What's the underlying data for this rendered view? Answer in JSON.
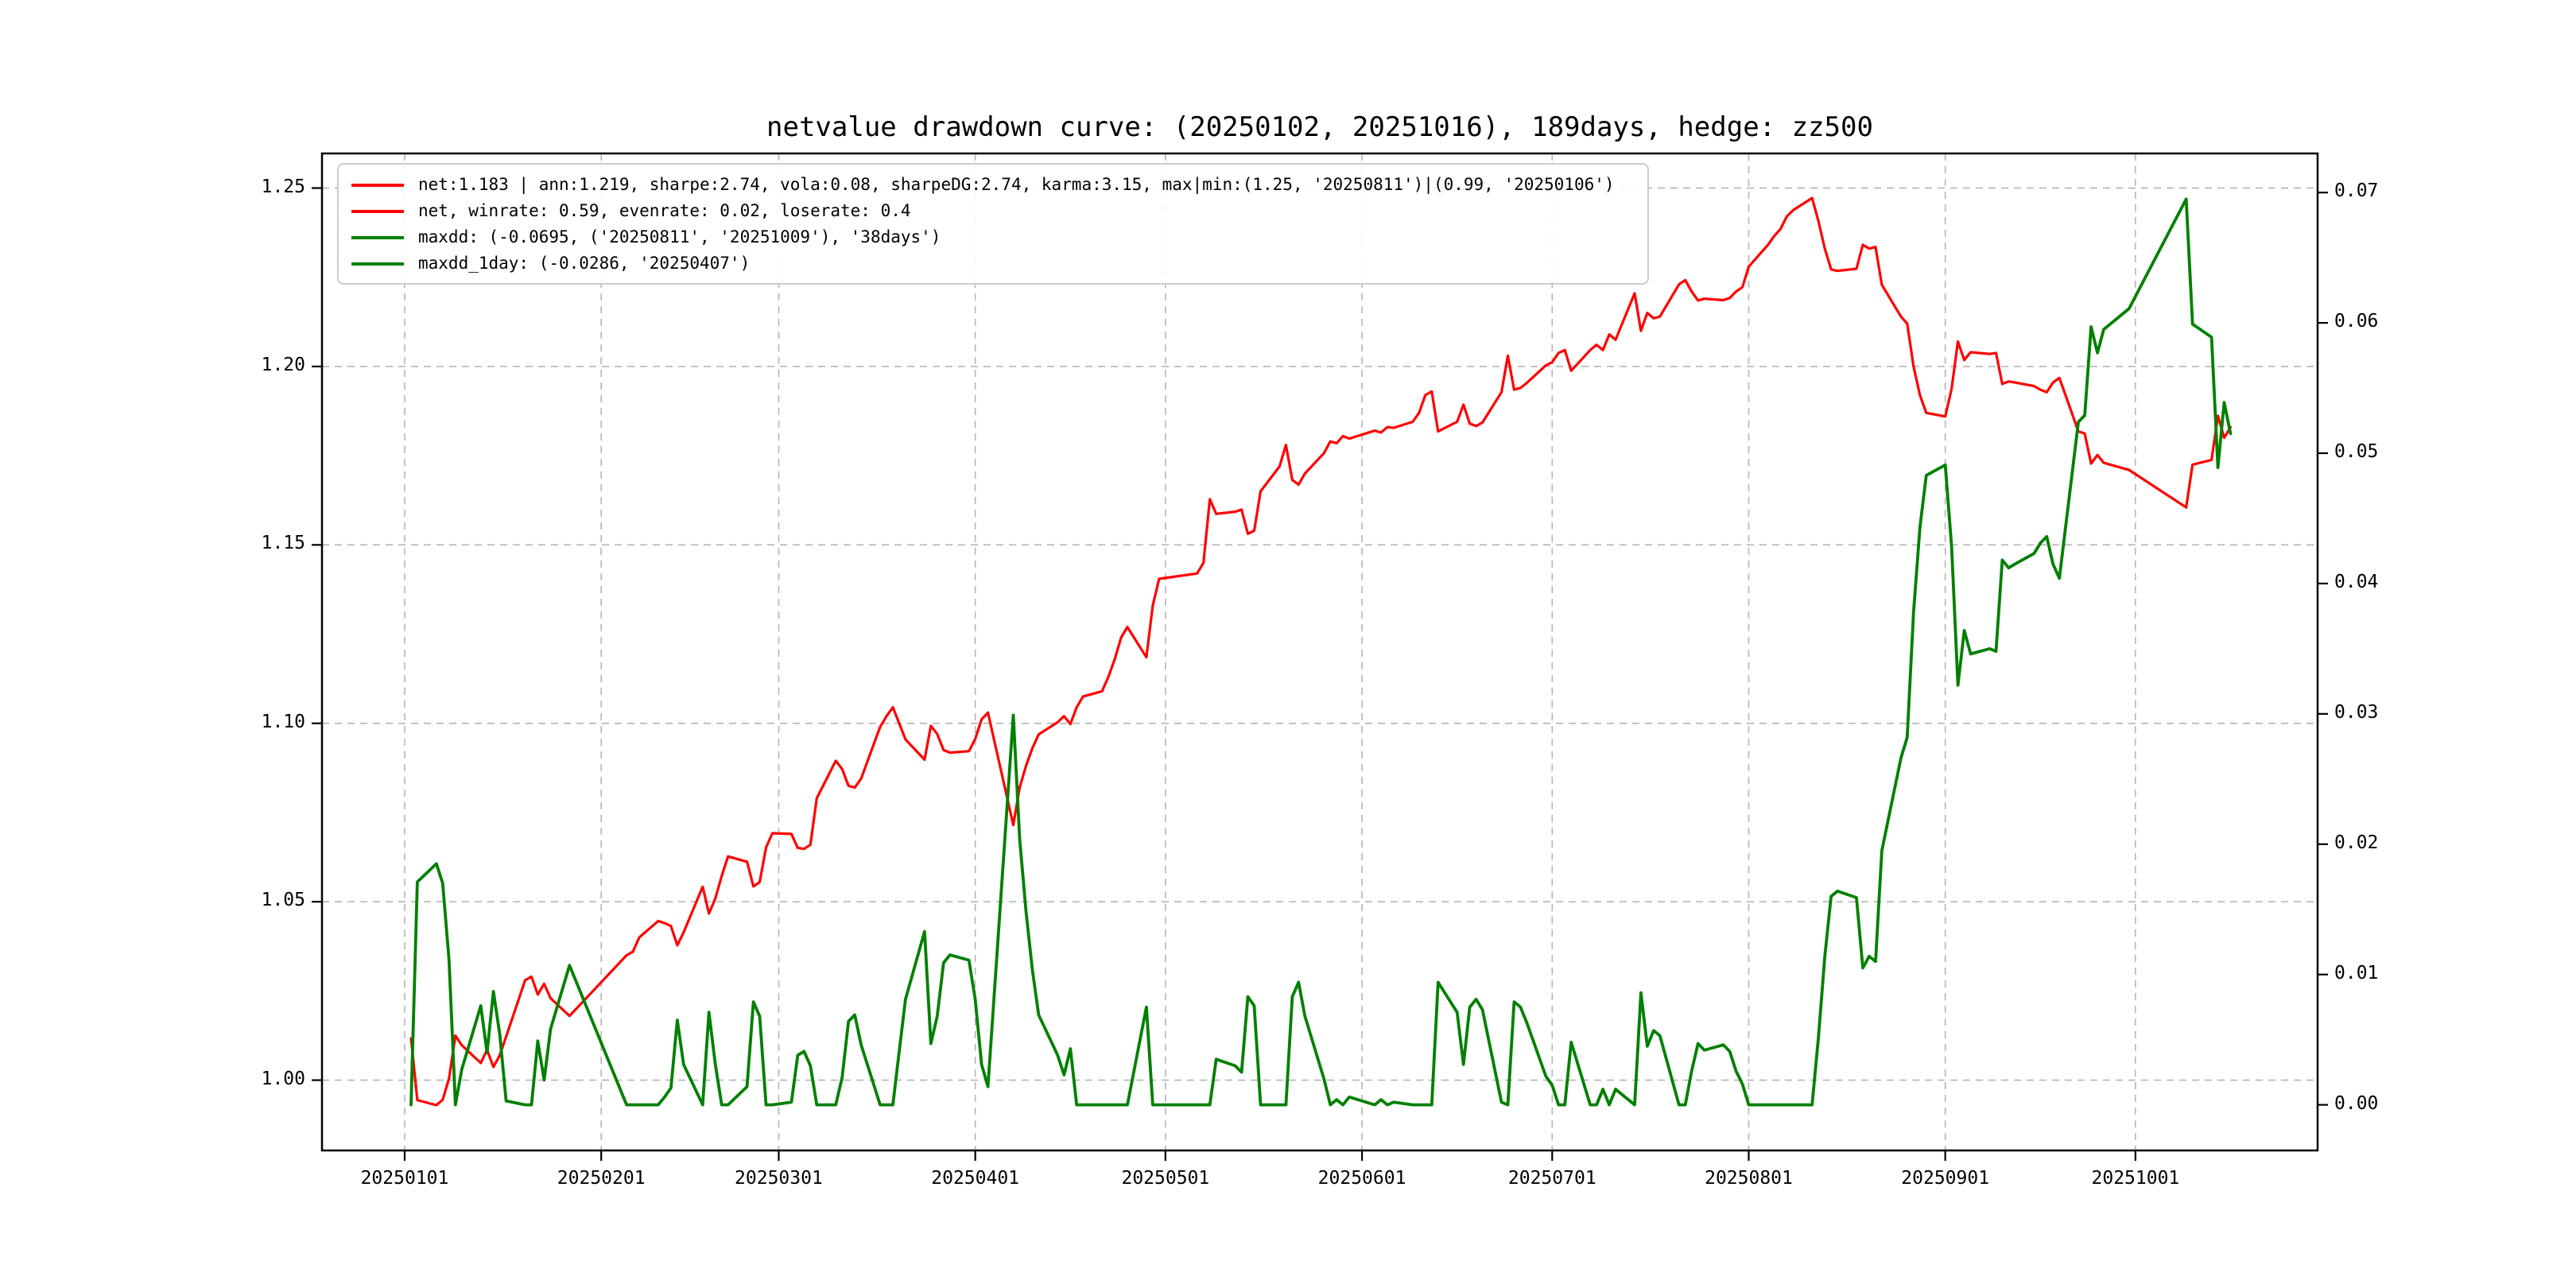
{
  "title": "netvalue drawdown curve: (20250102, 20251016), 189days, hedge: zz500",
  "colors": {
    "net": "#ff0000",
    "drawdown": "#008000",
    "grid": "#b5b5b5",
    "spine": "#000000",
    "background": "#ffffff",
    "legend_border": "#cccccc"
  },
  "legend": {
    "items": [
      {
        "label": "net:1.183 | ann:1.219, sharpe:2.74, vola:0.08, sharpeDG:2.74, karma:3.15, max|min:(1.25, '20250811')|(0.99, '20250106')",
        "color": "#ff0000",
        "series": "net"
      },
      {
        "label": "net, winrate: 0.59, evenrate: 0.02, loserate: 0.4",
        "color": "#ff0000",
        "series": "net"
      },
      {
        "label": "maxdd: (-0.0695, ('20250811', '20251009'), '38days')",
        "color": "#008000",
        "series": "maxdd"
      },
      {
        "label": "maxdd_1day: (-0.0286, '20250407')",
        "color": "#008000",
        "series": "maxdd_1day"
      }
    ]
  },
  "axes": {
    "x": {
      "tick_labels": [
        "20250101",
        "20250201",
        "20250301",
        "20250401",
        "20250501",
        "20250601",
        "20250701",
        "20250801",
        "20250901",
        "20251001"
      ],
      "anchor_date": "20250101",
      "lim_days": [
        -13.04,
        301.73
      ]
    },
    "y_left": {
      "tick_labels": [
        "1.00",
        "1.05",
        "1.10",
        "1.15",
        "1.20",
        "1.25"
      ],
      "tick_values": [
        1.0,
        1.05,
        1.1,
        1.15,
        1.2,
        1.25
      ],
      "lim": [
        0.9803,
        1.2597
      ]
    },
    "y_right": {
      "tick_labels": [
        "0.00",
        "0.01",
        "0.02",
        "0.03",
        "0.04",
        "0.05",
        "0.06",
        "0.07"
      ],
      "tick_values": [
        0.0,
        0.01,
        0.02,
        0.03,
        0.04,
        0.05,
        0.06,
        0.07
      ],
      "lim": [
        -0.0035,
        0.073
      ]
    }
  },
  "chart_data": {
    "type": "line",
    "title": "netvalue drawdown curve: (20250102, 20251016), 189days, hedge: zz500",
    "x_type": "date",
    "grid": true,
    "legend_position": "upper left",
    "ylim_left": [
      0.9803,
      1.2597
    ],
    "ylim_right": [
      -0.0035,
      0.073
    ],
    "xlim_days": [
      -13.04,
      301.73
    ],
    "stats": {
      "net_final": 1.183,
      "ann": 1.219,
      "sharpe": 2.74,
      "vola": 0.08,
      "sharpeDG": 2.74,
      "karma": 3.15,
      "max": {
        "value": 1.25,
        "date": "20250811"
      },
      "min": {
        "value": 0.99,
        "date": "20250106"
      },
      "winrate": 0.59,
      "evenrate": 0.02,
      "loserate": 0.4,
      "maxdd": {
        "value": -0.0695,
        "from": "20250811",
        "to": "20251009",
        "duration": "38days"
      },
      "maxdd_1day": {
        "value": -0.0286,
        "date": "20250407"
      },
      "days": 189
    },
    "dates": [
      "20250102",
      "20250103",
      "20250106",
      "20250107",
      "20250108",
      "20250109",
      "20250110",
      "20250113",
      "20250114",
      "20250115",
      "20250116",
      "20250117",
      "20250120",
      "20250121",
      "20250122",
      "20250123",
      "20250124",
      "20250127",
      "20250205",
      "20250206",
      "20250207",
      "20250210",
      "20250211",
      "20250212",
      "20250213",
      "20250214",
      "20250217",
      "20250218",
      "20250219",
      "20250220",
      "20250221",
      "20250224",
      "20250225",
      "20250226",
      "20250227",
      "20250228",
      "20250303",
      "20250304",
      "20250305",
      "20250306",
      "20250307",
      "20250310",
      "20250311",
      "20250312",
      "20250313",
      "20250314",
      "20250317",
      "20250318",
      "20250319",
      "20250320",
      "20250321",
      "20250324",
      "20250325",
      "20250326",
      "20250327",
      "20250328",
      "20250331",
      "20250401",
      "20250402",
      "20250403",
      "20250407",
      "20250408",
      "20250409",
      "20250410",
      "20250411",
      "20250414",
      "20250415",
      "20250416",
      "20250417",
      "20250418",
      "20250421",
      "20250422",
      "20250423",
      "20250424",
      "20250425",
      "20250428",
      "20250429",
      "20250430",
      "20250506",
      "20250507",
      "20250508",
      "20250509",
      "20250512",
      "20250513",
      "20250514",
      "20250515",
      "20250516",
      "20250519",
      "20250520",
      "20250521",
      "20250522",
      "20250523",
      "20250526",
      "20250527",
      "20250528",
      "20250529",
      "20250530",
      "20250603",
      "20250604",
      "20250605",
      "20250606",
      "20250609",
      "20250610",
      "20250611",
      "20250612",
      "20250613",
      "20250616",
      "20250617",
      "20250618",
      "20250619",
      "20250620",
      "20250623",
      "20250624",
      "20250625",
      "20250626",
      "20250627",
      "20250630",
      "20250701",
      "20250702",
      "20250703",
      "20250704",
      "20250707",
      "20250708",
      "20250709",
      "20250710",
      "20250711",
      "20250714",
      "20250715",
      "20250716",
      "20250717",
      "20250718",
      "20250721",
      "20250722",
      "20250723",
      "20250724",
      "20250725",
      "20250728",
      "20250729",
      "20250730",
      "20250731",
      "20250801",
      "20250804",
      "20250805",
      "20250806",
      "20250807",
      "20250808",
      "20250811",
      "20250812",
      "20250813",
      "20250814",
      "20250815",
      "20250818",
      "20250819",
      "20250820",
      "20250821",
      "20250822",
      "20250825",
      "20250826",
      "20250827",
      "20250828",
      "20250829",
      "20250901",
      "20250902",
      "20250903",
      "20250904",
      "20250905",
      "20250908",
      "20250909",
      "20250910",
      "20250911",
      "20250912",
      "20250915",
      "20250916",
      "20250917",
      "20250918",
      "20250919",
      "20250922",
      "20250923",
      "20250924",
      "20250925",
      "20250926",
      "20250929",
      "20250930",
      "20251009",
      "20251010",
      "20251013",
      "20251014",
      "20251015",
      "20251016"
    ],
    "series": [
      {
        "name": "net",
        "axis": "left",
        "color": "#ff0000",
        "values": [
          1.0117,
          0.9944,
          0.993,
          0.9945,
          1.0005,
          1.0125,
          1.0098,
          1.0048,
          1.0085,
          1.0037,
          1.007,
          1.0122,
          1.028,
          1.029,
          1.024,
          1.027,
          1.023,
          1.018,
          1.035,
          1.036,
          1.04,
          1.0446,
          1.044,
          1.0432,
          1.0378,
          1.0414,
          1.0542,
          1.0467,
          1.0509,
          1.0572,
          1.0627,
          1.0612,
          1.0543,
          1.0555,
          1.0652,
          1.0692,
          1.069,
          1.0651,
          1.0648,
          1.066,
          1.079,
          1.0895,
          1.0872,
          1.0825,
          1.082,
          1.0845,
          1.099,
          1.102,
          1.1045,
          1.1,
          1.0955,
          1.0898,
          1.0993,
          1.097,
          1.0925,
          1.0918,
          1.0922,
          1.0956,
          1.1011,
          1.103,
          1.0715,
          1.082,
          1.088,
          1.093,
          1.0969,
          1.1003,
          1.102,
          1.0998,
          1.1045,
          1.1075,
          1.109,
          1.113,
          1.118,
          1.124,
          1.127,
          1.1185,
          1.133,
          1.1405,
          1.142,
          1.145,
          1.1628,
          1.1587,
          1.1593,
          1.1599,
          1.1531,
          1.154,
          1.165,
          1.172,
          1.178,
          1.1682,
          1.1669,
          1.17,
          1.1757,
          1.179,
          1.1785,
          1.1805,
          1.1798,
          1.182,
          1.1815,
          1.183,
          1.1828,
          1.1845,
          1.187,
          1.192,
          1.193,
          1.1818,
          1.1845,
          1.1893,
          1.184,
          1.1833,
          1.1843,
          1.1928,
          1.203,
          1.1935,
          1.194,
          1.1954,
          1.2003,
          1.2012,
          1.2038,
          1.2046,
          1.1988,
          1.2046,
          1.2061,
          1.2046,
          1.209,
          1.2075,
          1.2205,
          1.21,
          1.215,
          1.2135,
          1.214,
          1.223,
          1.2242,
          1.221,
          1.2185,
          1.219,
          1.2186,
          1.2192,
          1.221,
          1.2222,
          1.228,
          1.234,
          1.2365,
          1.2385,
          1.242,
          1.2438,
          1.2472,
          1.2407,
          1.233,
          1.2272,
          1.2268,
          1.2274,
          1.2341,
          1.233,
          1.2335,
          1.2229,
          1.214,
          1.212,
          1.2,
          1.192,
          1.187,
          1.186,
          1.1938,
          1.207,
          1.2018,
          1.204,
          1.2035,
          1.2038,
          1.1951,
          1.1958,
          1.1955,
          1.1945,
          1.1935,
          1.1928,
          1.1955,
          1.1968,
          1.1818,
          1.1812,
          1.1728,
          1.1752,
          1.173,
          1.1715,
          1.171,
          1.1605,
          1.1725,
          1.1738,
          1.1862,
          1.18,
          1.183
        ]
      },
      {
        "name": "maxdd",
        "axis": "right",
        "color": "#008000",
        "values": [
          0,
          0.0171,
          0.0185,
          0.017,
          0.0111,
          0,
          0.0027,
          0.0076,
          0.004,
          0.0087,
          0.0054,
          0.0003,
          0,
          0,
          0.0049,
          0.0019,
          0.0058,
          0.0107,
          0,
          0,
          0,
          0,
          0.0006,
          0.0013,
          0.0065,
          0.0031,
          0,
          0.0071,
          0.0031,
          0,
          0,
          0.0014,
          0.0079,
          0.0068,
          0,
          0,
          0.0002,
          0.0038,
          0.0041,
          0.003,
          0,
          0,
          0.0021,
          0.0064,
          0.0069,
          0.0046,
          0,
          0,
          0,
          0.0041,
          0.0081,
          0.0133,
          0.0047,
          0.0068,
          0.0109,
          0.0115,
          0.0111,
          0.0081,
          0.0031,
          0.0014,
          0.0299,
          0.0204,
          0.0149,
          0.0104,
          0.0069,
          0.0038,
          0.0023,
          0.0043,
          0,
          0,
          0,
          0,
          0,
          0,
          0,
          0.0075,
          0,
          0,
          0,
          0,
          0,
          0.0035,
          0.003,
          0.0025,
          0.0083,
          0.0076,
          0,
          0,
          0,
          0.0083,
          0.0094,
          0.0068,
          0.002,
          0,
          0.0004,
          0,
          0.0006,
          0,
          0.0004,
          0,
          0.0002,
          0,
          0,
          0,
          0,
          0.0094,
          0.0071,
          0.0031,
          0.0075,
          0.0081,
          0.0073,
          0.0002,
          0,
          0.0079,
          0.0075,
          0.0063,
          0.0022,
          0.0015,
          0,
          0,
          0.0048,
          0,
          0,
          0.0012,
          0,
          0.0012,
          0,
          0.0086,
          0.0045,
          0.0057,
          0.0053,
          0,
          0,
          0.0026,
          0.0047,
          0.0042,
          0.0046,
          0.0041,
          0.0026,
          0.0016,
          0,
          0,
          0,
          0,
          0,
          0,
          0,
          0.0052,
          0.0114,
          0.016,
          0.0164,
          0.0159,
          0.0105,
          0.0114,
          0.011,
          0.0195,
          0.0266,
          0.0282,
          0.0378,
          0.0443,
          0.0483,
          0.0491,
          0.0428,
          0.0322,
          0.0364,
          0.0346,
          0.035,
          0.0348,
          0.0418,
          0.0412,
          0.0415,
          0.0423,
          0.0431,
          0.0436,
          0.0415,
          0.0404,
          0.0524,
          0.0529,
          0.0597,
          0.0577,
          0.0595,
          0.0607,
          0.0611,
          0.0695,
          0.0599,
          0.0589,
          0.0489,
          0.0539,
          0.0515
        ]
      },
      {
        "name": "maxdd_1day",
        "axis": "right",
        "color": "#008000",
        "note": "drawn coincident with maxdd curve (duplicate legend entry)",
        "values": null
      }
    ]
  }
}
